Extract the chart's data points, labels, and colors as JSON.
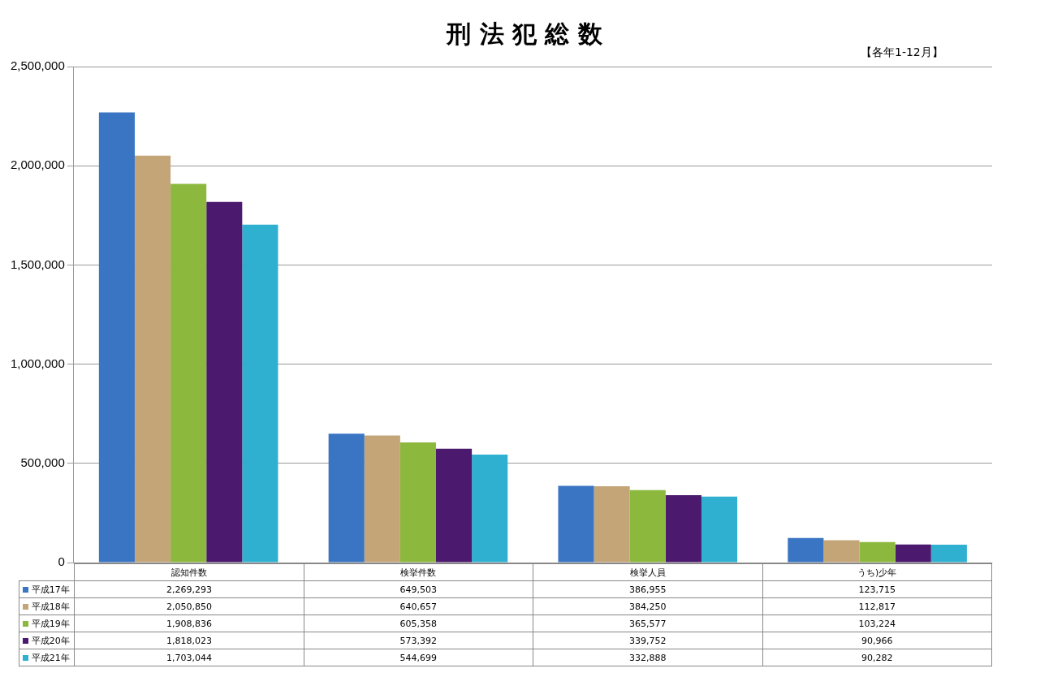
{
  "chart_data": {
    "type": "bar",
    "title": "刑 法 犯 総 数",
    "subtitle": "【各年1-12月】",
    "categories": [
      "認知件数",
      "検挙件数",
      "検挙人員",
      "うち)少年"
    ],
    "series": [
      {
        "name": "平成17年",
        "color": "#3a75c4",
        "values": [
          2269293,
          649503,
          386955,
          123715
        ],
        "value_labels": [
          "2,269,293",
          "649,503",
          "386,955",
          "123,715"
        ]
      },
      {
        "name": "平成18年",
        "color": "#c4a577",
        "values": [
          2050850,
          640657,
          384250,
          112817
        ],
        "value_labels": [
          "2,050,850",
          "640,657",
          "384,250",
          "112,817"
        ]
      },
      {
        "name": "平成19年",
        "color": "#8db83e",
        "values": [
          1908836,
          605358,
          365577,
          103224
        ],
        "value_labels": [
          "1,908,836",
          "605,358",
          "365,577",
          "103,224"
        ]
      },
      {
        "name": "平成20年",
        "color": "#4b1a6e",
        "values": [
          1818023,
          573392,
          339752,
          90966
        ],
        "value_labels": [
          "1,818,023",
          "573,392",
          "339,752",
          "90,966"
        ]
      },
      {
        "name": "平成21年",
        "color": "#2fb0d0",
        "values": [
          1703044,
          544699,
          332888,
          90282
        ],
        "value_labels": [
          "1,703,044",
          "544,699",
          "332,888",
          "90,282"
        ]
      }
    ],
    "ylim": [
      0,
      2500000
    ],
    "yticks": [
      {
        "value": 0,
        "label": "0"
      },
      {
        "value": 500000,
        "label": "500,000"
      },
      {
        "value": 1000000,
        "label": "1,000,000"
      },
      {
        "value": 1500000,
        "label": "1,500,000"
      },
      {
        "value": 2000000,
        "label": "2,000,000"
      },
      {
        "value": 2500000,
        "label": "2,500,000"
      }
    ],
    "grid": "y",
    "legend": "bottom"
  }
}
